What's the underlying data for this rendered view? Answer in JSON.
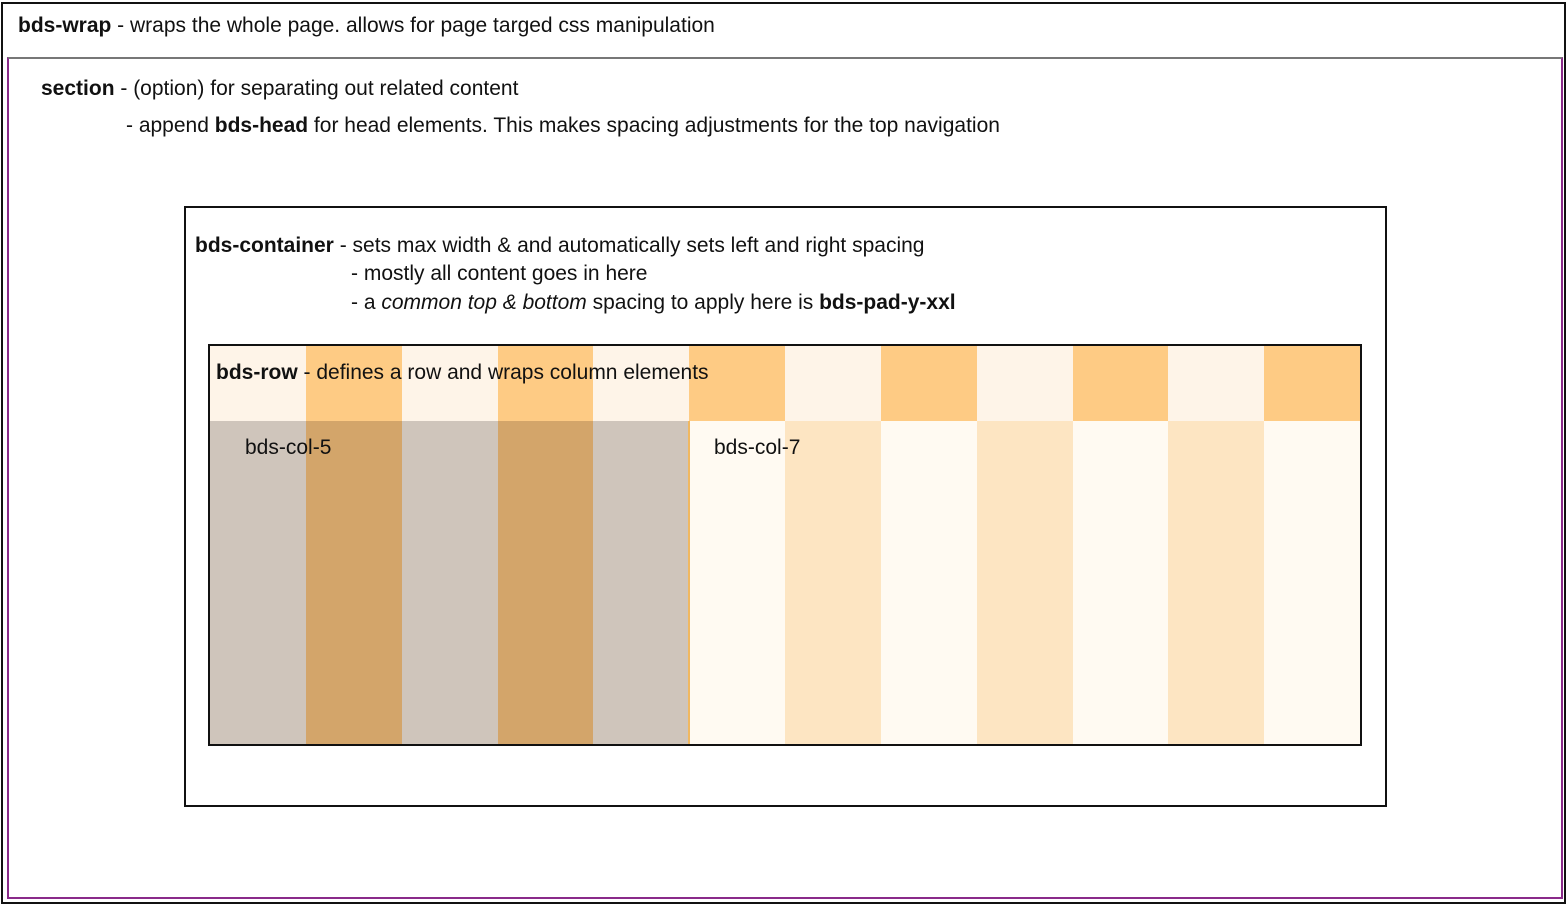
{
  "wrap": {
    "name": "bds-wrap",
    "desc": " - wraps the whole page. allows for page targed css manipulation"
  },
  "section": {
    "name": "section",
    "desc": " - (option) for separating out related content",
    "line2_pre": "- append ",
    "line2_bold": "bds-head",
    "line2_post": " for head elements. This makes spacing adjustments for the top navigation"
  },
  "container": {
    "name": "bds-container",
    "desc": " - sets max width & and automatically sets left and right spacing",
    "line2": "- mostly all content goes in here",
    "line3_pre": "- a ",
    "line3_italic": "common top & bottom",
    "line3_mid": " spacing to apply here is ",
    "line3_bold": "bds-pad-y-xxl"
  },
  "row": {
    "name": "bds-row",
    "desc": " - defines a row and wraps column elements"
  },
  "columns": {
    "left_label": "bds-col-5",
    "right_label": "bds-col-7",
    "grid_count": 12,
    "left_span": 5,
    "right_span": 7
  },
  "colors": {
    "head_light": "#fef4e8",
    "head_dark": "#fecb84",
    "left_light": "#cfc5bb",
    "left_dark": "#d3a56a",
    "right_dark": "#fde5c2",
    "right_light": "#fffaf2",
    "section_border": "#8a2a8a"
  }
}
